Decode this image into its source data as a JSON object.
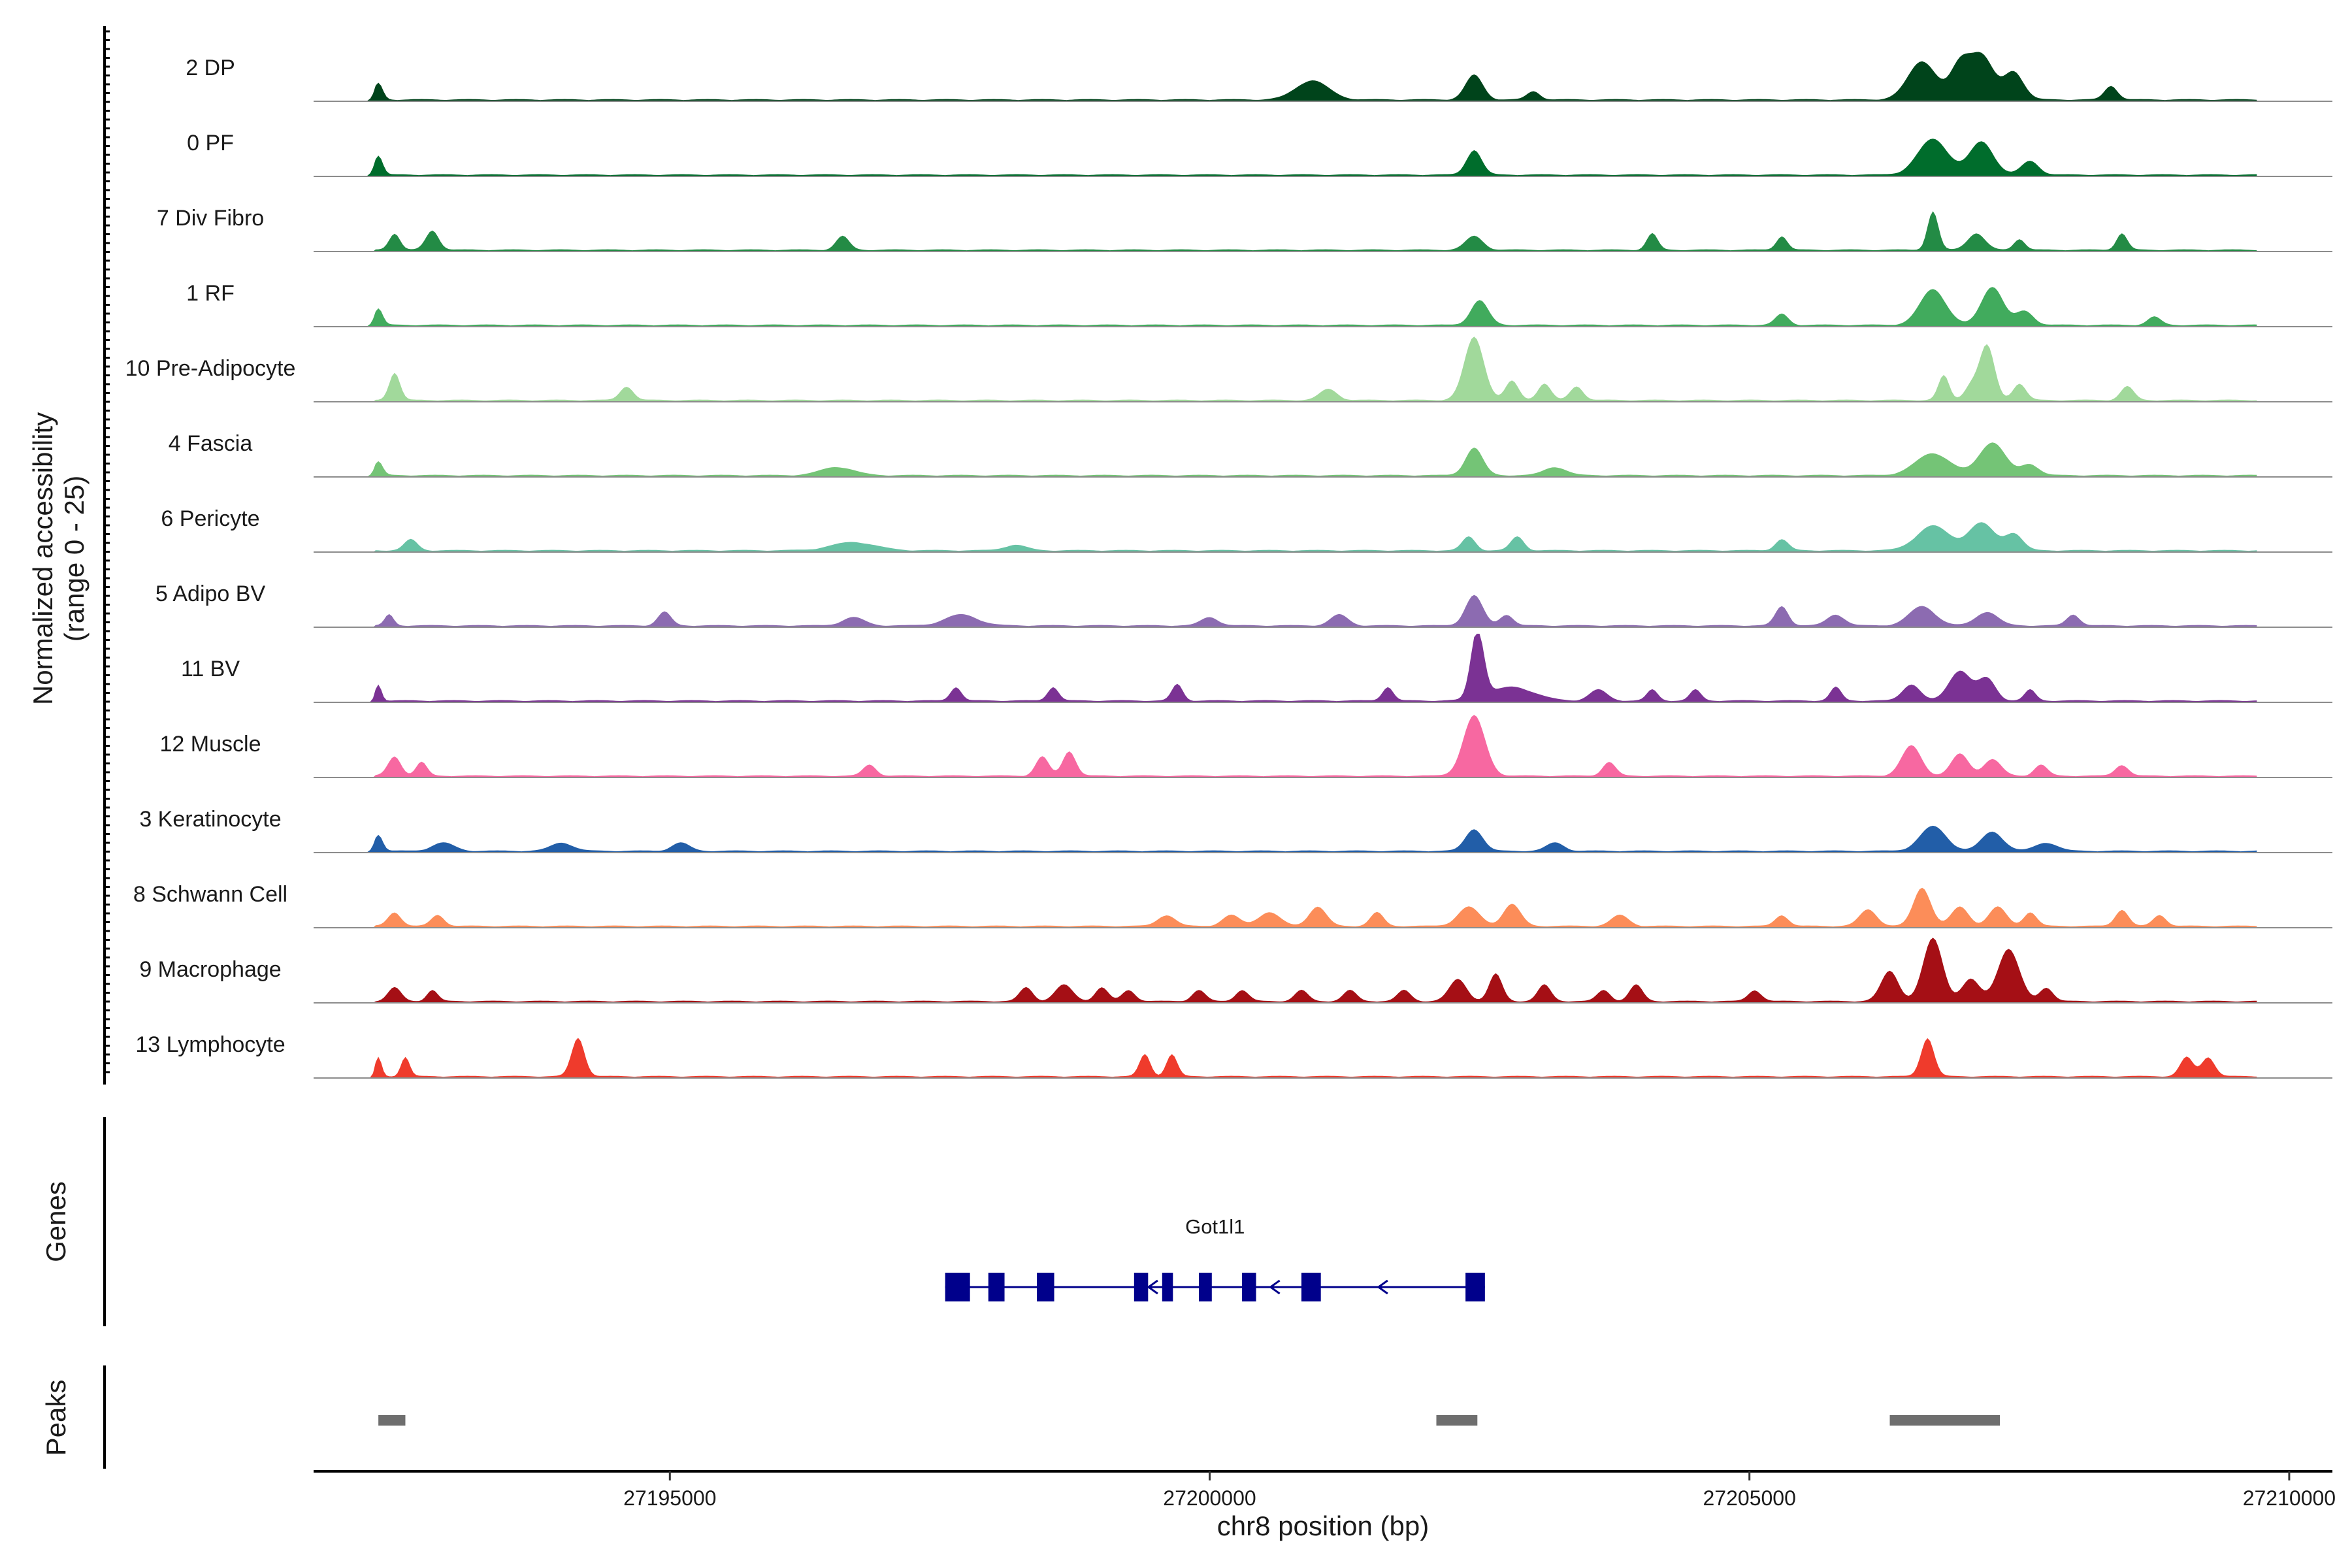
{
  "chart_data": {
    "type": "area",
    "title": "",
    "chromosome": "chr8",
    "xlabel": "chr8 position (bp)",
    "ylabel_line1": "Normalized accessibility",
    "ylabel_line2": "(range 0 - 25)",
    "y_range": [
      0,
      25
    ],
    "xlim": [
      27191700,
      27210400
    ],
    "x_ticks": [
      27195000,
      27200000,
      27205000,
      27210000
    ],
    "x_tick_labels": [
      "27195000",
      "27200000",
      "27205000",
      "27210000"
    ],
    "genes_label": "Genes",
    "peaks_label": "Peaks",
    "tracks": [
      {
        "name": "2 DP",
        "color": "#00441b",
        "peaks": [
          [
            27192300,
            6,
            40
          ],
          [
            27200950,
            7,
            150
          ],
          [
            27202450,
            9,
            80
          ],
          [
            27203000,
            3,
            60
          ],
          [
            27206600,
            14,
            130
          ],
          [
            27206950,
            12,
            90
          ],
          [
            27207150,
            16,
            110
          ],
          [
            27207450,
            10,
            90
          ],
          [
            27208350,
            5,
            60
          ]
        ]
      },
      {
        "name": "0 PF",
        "color": "#006d2c",
        "peaks": [
          [
            27192300,
            7,
            40
          ],
          [
            27202450,
            9,
            70
          ],
          [
            27206700,
            13,
            140
          ],
          [
            27207150,
            12,
            110
          ],
          [
            27207600,
            5,
            80
          ]
        ]
      },
      {
        "name": "7 Div Fibro",
        "color": "#238b45",
        "peaks": [
          [
            27192450,
            6,
            50
          ],
          [
            27192800,
            7,
            60
          ],
          [
            27196600,
            5,
            60
          ],
          [
            27202450,
            5,
            80
          ],
          [
            27204100,
            6,
            50
          ],
          [
            27205300,
            5,
            50
          ],
          [
            27206700,
            14,
            50
          ],
          [
            27207100,
            6,
            80
          ],
          [
            27207500,
            4,
            50
          ],
          [
            27208450,
            6,
            50
          ]
        ]
      },
      {
        "name": "1 RF",
        "color": "#41ab5d",
        "peaks": [
          [
            27192300,
            6,
            40
          ],
          [
            27202500,
            9,
            80
          ],
          [
            27205300,
            4,
            60
          ],
          [
            27206700,
            13,
            120
          ],
          [
            27207250,
            14,
            100
          ],
          [
            27207550,
            5,
            80
          ],
          [
            27208750,
            3,
            60
          ]
        ]
      },
      {
        "name": "10 Pre-Adipocyte",
        "color": "#a1d99b",
        "peaks": [
          [
            27192450,
            10,
            50
          ],
          [
            27194600,
            5,
            60
          ],
          [
            27201100,
            4,
            80
          ],
          [
            27202450,
            23,
            90
          ],
          [
            27202800,
            7,
            60
          ],
          [
            27203100,
            6,
            60
          ],
          [
            27203400,
            5,
            60
          ],
          [
            27206800,
            9,
            50
          ],
          [
            27207200,
            20,
            70
          ],
          [
            27207050,
            5,
            60
          ],
          [
            27207500,
            6,
            60
          ],
          [
            27208500,
            5,
            60
          ]
        ]
      },
      {
        "name": "4 Fascia",
        "color": "#74c476",
        "peaks": [
          [
            27192300,
            5,
            40
          ],
          [
            27196550,
            3,
            150
          ],
          [
            27202450,
            10,
            80
          ],
          [
            27203200,
            3,
            100
          ],
          [
            27206700,
            8,
            160
          ],
          [
            27207250,
            12,
            120
          ],
          [
            27207600,
            4,
            80
          ]
        ]
      },
      {
        "name": "6 Pericyte",
        "color": "#66c2a4",
        "peaks": [
          [
            27192600,
            4,
            60
          ],
          [
            27196700,
            3,
            200
          ],
          [
            27198200,
            2,
            100
          ],
          [
            27202400,
            5,
            60
          ],
          [
            27202850,
            5,
            60
          ],
          [
            27205300,
            4,
            60
          ],
          [
            27206700,
            9,
            150
          ],
          [
            27207150,
            10,
            120
          ],
          [
            27207450,
            6,
            80
          ]
        ]
      },
      {
        "name": "5 Adipo BV",
        "color": "#8c6bb1",
        "peaks": [
          [
            27192400,
            4,
            40
          ],
          [
            27194950,
            5,
            60
          ],
          [
            27196700,
            3,
            100
          ],
          [
            27197700,
            4,
            150
          ],
          [
            27200000,
            3,
            80
          ],
          [
            27201200,
            4,
            80
          ],
          [
            27202450,
            11,
            80
          ],
          [
            27202750,
            4,
            60
          ],
          [
            27205300,
            7,
            60
          ],
          [
            27205800,
            4,
            80
          ],
          [
            27206600,
            7,
            120
          ],
          [
            27207200,
            5,
            100
          ],
          [
            27208000,
            4,
            60
          ]
        ]
      },
      {
        "name": "11 BV",
        "color": "#7b3294",
        "peaks": [
          [
            27192300,
            6,
            30
          ],
          [
            27197650,
            5,
            50
          ],
          [
            27198550,
            5,
            50
          ],
          [
            27199700,
            6,
            50
          ],
          [
            27201650,
            5,
            50
          ],
          [
            27202480,
            25,
            60
          ],
          [
            27202800,
            5,
            200
          ],
          [
            27203600,
            4,
            80
          ],
          [
            27204100,
            4,
            50
          ],
          [
            27204500,
            4,
            50
          ],
          [
            27205800,
            5,
            50
          ],
          [
            27206500,
            6,
            80
          ],
          [
            27206950,
            11,
            100
          ],
          [
            27207200,
            8,
            80
          ],
          [
            27207600,
            4,
            50
          ]
        ]
      },
      {
        "name": "12 Muscle",
        "color": "#f768a1",
        "peaks": [
          [
            27192450,
            7,
            60
          ],
          [
            27192700,
            5,
            50
          ],
          [
            27196850,
            4,
            60
          ],
          [
            27198450,
            7,
            60
          ],
          [
            27198700,
            9,
            60
          ],
          [
            27202450,
            22,
            100
          ],
          [
            27203700,
            5,
            60
          ],
          [
            27206500,
            11,
            90
          ],
          [
            27206950,
            8,
            80
          ],
          [
            27207250,
            6,
            80
          ],
          [
            27207700,
            4,
            60
          ],
          [
            27208450,
            4,
            60
          ]
        ]
      },
      {
        "name": "3 Keratinocyte",
        "color": "#225ea8",
        "peaks": [
          [
            27192300,
            6,
            40
          ],
          [
            27192900,
            3,
            100
          ],
          [
            27194000,
            3,
            100
          ],
          [
            27195100,
            3,
            80
          ],
          [
            27202450,
            8,
            80
          ],
          [
            27203200,
            3,
            80
          ],
          [
            27206700,
            9,
            120
          ],
          [
            27207250,
            7,
            100
          ],
          [
            27207750,
            3,
            100
          ]
        ]
      },
      {
        "name": "8 Schwann Cell",
        "color": "#fc8d59",
        "peaks": [
          [
            27192450,
            5,
            60
          ],
          [
            27192850,
            4,
            60
          ],
          [
            27199600,
            4,
            80
          ],
          [
            27200200,
            4,
            80
          ],
          [
            27200550,
            5,
            100
          ],
          [
            27201000,
            7,
            80
          ],
          [
            27201550,
            5,
            60
          ],
          [
            27202400,
            7,
            100
          ],
          [
            27202800,
            8,
            80
          ],
          [
            27203800,
            4,
            80
          ],
          [
            27205300,
            4,
            60
          ],
          [
            27206100,
            6,
            80
          ],
          [
            27206600,
            14,
            80
          ],
          [
            27206950,
            7,
            80
          ],
          [
            27207300,
            7,
            80
          ],
          [
            27207600,
            5,
            60
          ],
          [
            27208450,
            6,
            60
          ],
          [
            27208800,
            4,
            60
          ]
        ]
      },
      {
        "name": "9 Macrophage",
        "color": "#a50f15",
        "peaks": [
          [
            27192450,
            5,
            60
          ],
          [
            27192800,
            4,
            50
          ],
          [
            27198300,
            5,
            60
          ],
          [
            27198650,
            6,
            80
          ],
          [
            27199000,
            5,
            60
          ],
          [
            27199250,
            4,
            60
          ],
          [
            27199900,
            4,
            60
          ],
          [
            27200300,
            4,
            60
          ],
          [
            27200850,
            4,
            60
          ],
          [
            27201300,
            4,
            60
          ],
          [
            27201800,
            4,
            60
          ],
          [
            27202300,
            8,
            80
          ],
          [
            27202650,
            10,
            60
          ],
          [
            27203100,
            6,
            60
          ],
          [
            27203650,
            4,
            60
          ],
          [
            27203950,
            6,
            60
          ],
          [
            27205050,
            4,
            60
          ],
          [
            27206300,
            11,
            80
          ],
          [
            27206700,
            23,
            90
          ],
          [
            27207050,
            8,
            80
          ],
          [
            27207400,
            19,
            100
          ],
          [
            27207750,
            5,
            60
          ]
        ]
      },
      {
        "name": "13 Lymphocyte",
        "color": "#ef3b2c",
        "peaks": [
          [
            27192300,
            7,
            30
          ],
          [
            27192550,
            7,
            40
          ],
          [
            27194150,
            14,
            60
          ],
          [
            27199400,
            8,
            50
          ],
          [
            27199650,
            8,
            50
          ],
          [
            27206650,
            14,
            60
          ],
          [
            27209050,
            7,
            60
          ],
          [
            27209250,
            7,
            60
          ]
        ]
      }
    ],
    "genes": [
      {
        "name": "Got1l1",
        "start": 27197550,
        "end": 27202550,
        "strand": "-",
        "exons": [
          [
            27197550,
            27197780
          ],
          [
            27197950,
            27198100
          ],
          [
            27198400,
            27198560
          ],
          [
            27199300,
            27199430
          ],
          [
            27199560,
            27199660
          ],
          [
            27199900,
            27200020
          ],
          [
            27200300,
            27200430
          ],
          [
            27200850,
            27201030
          ],
          [
            27202370,
            27202550
          ]
        ],
        "direction_markers": [
          27199470,
          27200600,
          27201600
        ]
      }
    ],
    "peaks_track": [
      [
        27192300,
        27192550
      ],
      [
        27202100,
        27202480
      ],
      [
        27206300,
        27207320
      ]
    ]
  }
}
